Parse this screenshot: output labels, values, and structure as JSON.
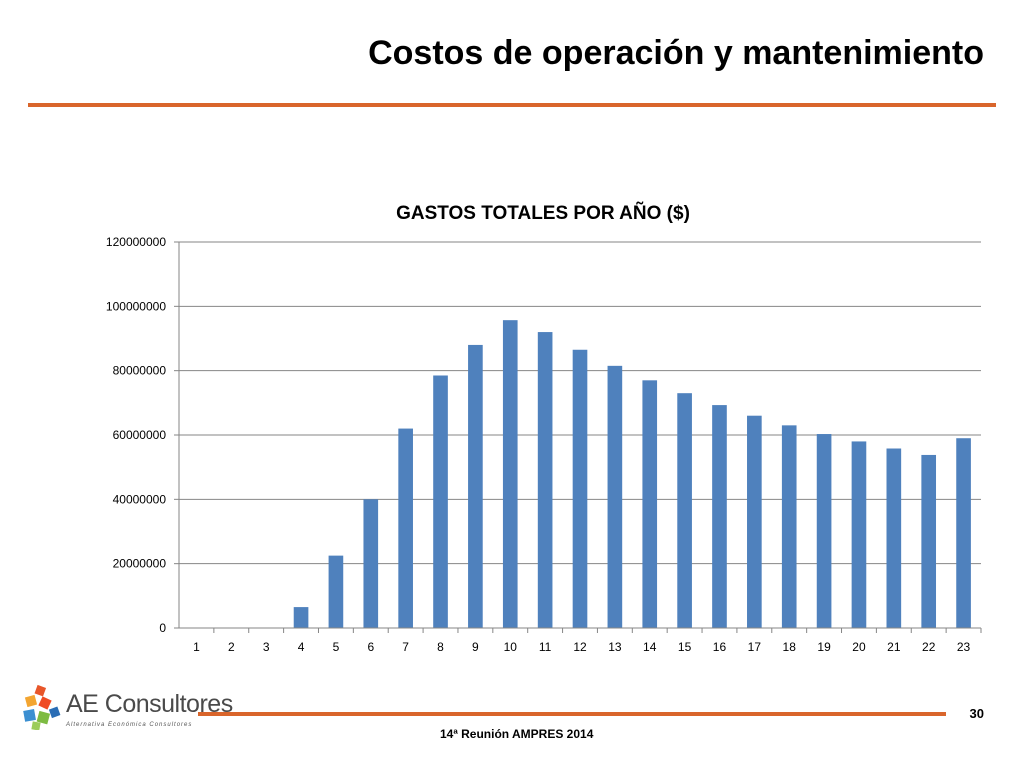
{
  "slide": {
    "title": "Costos de operación y mantenimiento",
    "page_number": "30",
    "footer": "14ª Reunión AMPRES 2014",
    "logo_text": "AE Consultores",
    "logo_subtext": "Alternativa Económica Consultores"
  },
  "colors": {
    "accent": "#d9652b",
    "bar": "#4f81bd",
    "grid": "#868686"
  },
  "chart_data": {
    "type": "bar",
    "title": "GASTOS TOTALES POR AÑO ($)",
    "xlabel": "",
    "ylabel": "",
    "categories": [
      "1",
      "2",
      "3",
      "4",
      "5",
      "6",
      "7",
      "8",
      "9",
      "10",
      "11",
      "12",
      "13",
      "14",
      "15",
      "16",
      "17",
      "18",
      "19",
      "20",
      "21",
      "22",
      "23"
    ],
    "values": [
      0,
      0,
      0,
      6500000,
      22500000,
      40000000,
      62000000,
      78500000,
      88000000,
      95700000,
      92000000,
      86500000,
      81500000,
      77000000,
      73000000,
      69300000,
      66000000,
      63000000,
      60300000,
      58000000,
      55800000,
      53800000,
      59000000
    ],
    "ylim": [
      0,
      120000000
    ],
    "yticks": [
      "0",
      "20000000",
      "40000000",
      "60000000",
      "80000000",
      "100000000",
      "120000000"
    ],
    "grid": true,
    "legend": "none"
  }
}
